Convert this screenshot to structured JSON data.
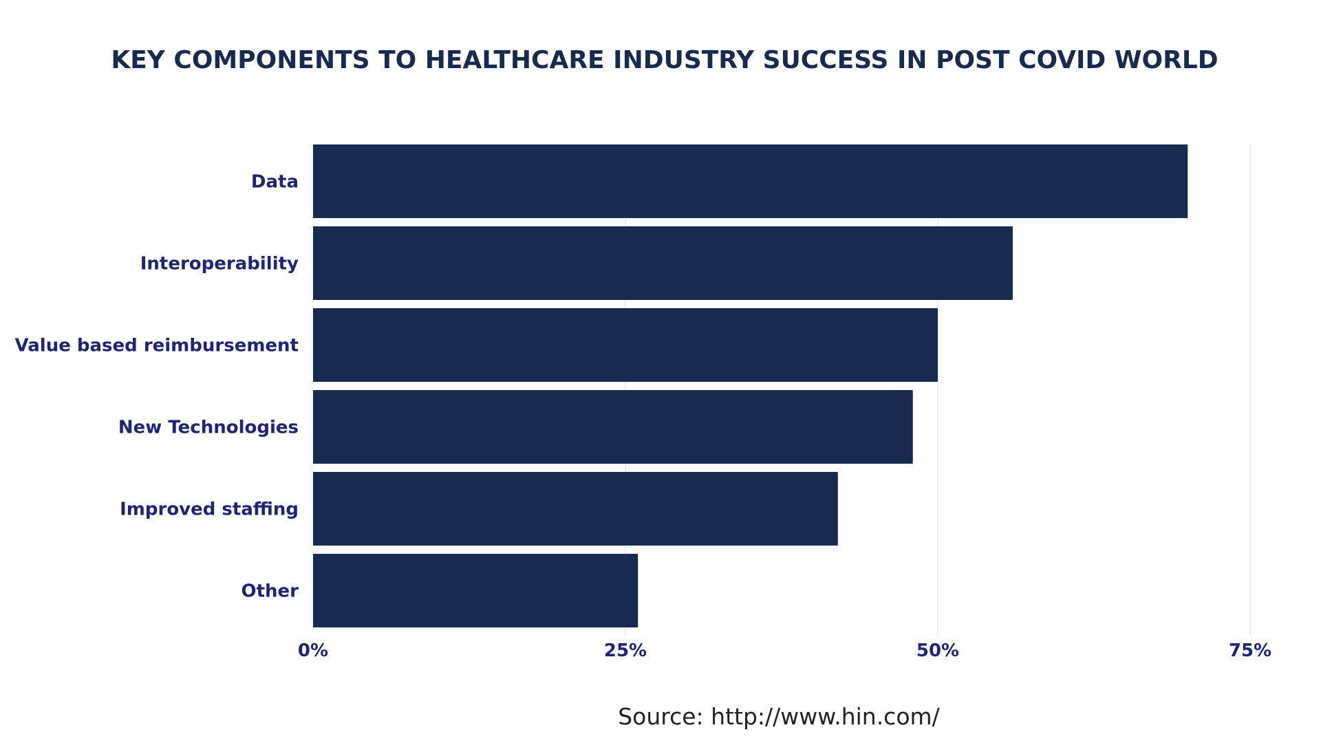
{
  "chart_data": {
    "type": "bar",
    "orientation": "horizontal",
    "title": "KEY COMPONENTS TO HEALTHCARE INDUSTRY SUCCESS IN POST COVID WORLD",
    "categories": [
      "Data",
      "Interoperability",
      "Value based reimbursement",
      "New Technologies",
      "Improved staffing",
      "Other"
    ],
    "values": [
      70,
      56,
      50,
      48,
      42,
      26
    ],
    "xlim": [
      0,
      75
    ],
    "xticks": [
      0,
      25,
      50,
      75
    ],
    "xtick_labels": [
      "0%",
      "25%",
      "50%",
      "75%"
    ],
    "xlabel": "",
    "ylabel": "",
    "grid": true,
    "legend": "none",
    "colors": {
      "bar": "#172a50",
      "grid": "#e3e5f3",
      "labels": "#1e2576",
      "title": "#172a50"
    }
  },
  "source": "Source: http://www.hin.com/"
}
